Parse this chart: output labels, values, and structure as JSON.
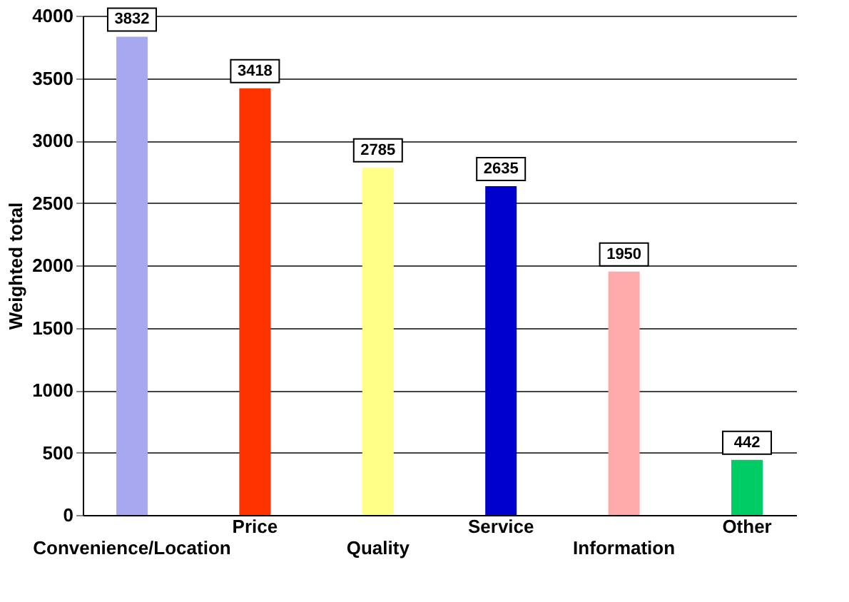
{
  "chart_data": {
    "type": "bar",
    "ylabel": "Weighted total",
    "categories": [
      "Convenience/Location",
      "Price",
      "Quality",
      "Service",
      "Information",
      "Other"
    ],
    "values": [
      3832,
      3418,
      2785,
      2635,
      1950,
      442
    ],
    "colors": [
      "#a8a8f0",
      "#ff3300",
      "#ffff88",
      "#0000cc",
      "#ffaaaa",
      "#00cc66"
    ],
    "ylim": [
      0,
      4000
    ],
    "yticks": [
      0,
      500,
      1000,
      1500,
      2000,
      2500,
      3000,
      3500,
      4000
    ],
    "grid": "y",
    "data_labels": true
  }
}
